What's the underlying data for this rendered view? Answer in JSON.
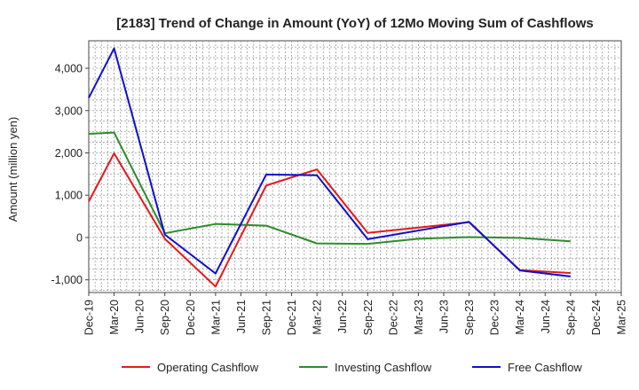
{
  "chart_data": {
    "type": "line",
    "title": "[2183]  Trend of Change in Amount (YoY) of 12Mo Moving Sum of Cashflows",
    "xlabel": "",
    "ylabel": "Amount (million yen)",
    "ylim": [
      -1300,
      4650
    ],
    "yticks": [
      -1000,
      0,
      1000,
      2000,
      3000,
      4000
    ],
    "ytick_labels": [
      "-1,000",
      "0",
      "1,000",
      "2,000",
      "3,000",
      "4,000"
    ],
    "categories": [
      "Dec-19",
      "Mar-20",
      "Jun-20",
      "Sep-20",
      "Dec-20",
      "Mar-21",
      "Jun-21",
      "Sep-21",
      "Dec-21",
      "Mar-22",
      "Jun-22",
      "Sep-22",
      "Dec-22",
      "Mar-23",
      "Jun-23",
      "Sep-23",
      "Dec-23",
      "Mar-24",
      "Jun-24",
      "Sep-24",
      "Dec-24",
      "Mar-25"
    ],
    "grid": true,
    "legend_position": "bottom",
    "series": [
      {
        "name": "Operating Cashflow",
        "color": "#e31a1c",
        "values": [
          850,
          1990,
          null,
          -30,
          null,
          -1160,
          null,
          1230,
          null,
          1610,
          null,
          110,
          null,
          null,
          null,
          360,
          null,
          -770,
          null,
          -840,
          null,
          null
        ]
      },
      {
        "name": "Investing Cashflow",
        "color": "#2e8b2e",
        "values": [
          2450,
          2480,
          null,
          100,
          null,
          320,
          null,
          280,
          null,
          -140,
          null,
          -150,
          null,
          -30,
          null,
          10,
          null,
          -10,
          null,
          -90,
          null,
          null
        ]
      },
      {
        "name": "Free Cashflow",
        "color": "#1010cc",
        "values": [
          3300,
          4470,
          null,
          70,
          null,
          -850,
          null,
          1490,
          null,
          1470,
          null,
          -40,
          null,
          null,
          null,
          370,
          null,
          -780,
          null,
          -920,
          null,
          null
        ]
      }
    ]
  }
}
